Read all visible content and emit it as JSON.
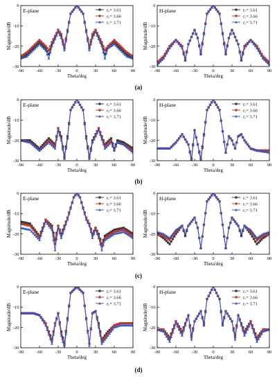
{
  "colors": {
    "s1": "#3a3a3a",
    "s2": "#c0392b",
    "s3": "#2f55d4",
    "axis": "#000000"
  },
  "legend_labels": [
    "εᵣ= 3.61",
    "εᵣ= 3.66",
    "εᵣ= 3.71"
  ],
  "xlabel": "Theta/deg",
  "ylabel": "Magnitude/dB",
  "xticks": [
    -90,
    -60,
    -30,
    0,
    30,
    60,
    90
  ],
  "yticks": [
    0,
    -10,
    -20,
    -30
  ],
  "xlim": [
    -90,
    90
  ],
  "ylim": [
    -30,
    0
  ],
  "rows": [
    {
      "label": "(a)"
    },
    {
      "label": "(b)"
    },
    {
      "label": "(c)"
    },
    {
      "label": "(d)"
    }
  ],
  "chart_data": [
    {
      "type": "line",
      "panel": "a-E",
      "title": "E-plane",
      "xlabel": "Theta/deg",
      "ylabel": "Magnitude/dB",
      "xlim": [
        -90,
        90
      ],
      "ylim": [
        -30,
        0
      ],
      "legend": "top-right",
      "x": [
        -90,
        -80,
        -70,
        -60,
        -50,
        -45,
        -40,
        -30,
        -25,
        -20,
        -10,
        0,
        10,
        20,
        25,
        30,
        40,
        45,
        50,
        60,
        70,
        80,
        90
      ],
      "series": [
        {
          "name": "εᵣ= 3.61",
          "values": [
            -26,
            -24,
            -21,
            -18,
            -21,
            -24,
            -19,
            -12,
            -15,
            -21,
            -4,
            0,
            -4,
            -21,
            -15,
            -12,
            -19,
            -24,
            -20,
            -18,
            -21,
            -24,
            -26
          ]
        },
        {
          "name": "εᵣ= 3.66",
          "values": [
            -25,
            -23,
            -20,
            -17,
            -20,
            -22,
            -18,
            -12,
            -14,
            -20,
            -4,
            0,
            -4,
            -20,
            -14,
            -12,
            -18,
            -22,
            -20,
            -17,
            -20,
            -23,
            -25
          ]
        },
        {
          "name": "εᵣ= 3.71",
          "values": [
            -26,
            -25,
            -22,
            -19,
            -22,
            -26,
            -20,
            -13,
            -16,
            -22,
            -4,
            0,
            -4,
            -22,
            -16,
            -13,
            -20,
            -26,
            -21,
            -19,
            -22,
            -25,
            -26
          ]
        }
      ]
    },
    {
      "type": "line",
      "panel": "a-H",
      "title": "H-plane",
      "xlabel": "Theta/deg",
      "ylabel": "Magnitude/dB",
      "xlim": [
        -90,
        90
      ],
      "ylim": [
        -30,
        0
      ],
      "legend": "top-right",
      "x": [
        -90,
        -80,
        -70,
        -60,
        -50,
        -45,
        -40,
        -30,
        -25,
        -20,
        -10,
        0,
        10,
        20,
        25,
        30,
        40,
        45,
        50,
        60,
        70,
        80,
        90
      ],
      "series": [
        {
          "name": "εᵣ= 3.61",
          "values": [
            -29,
            -26,
            -20,
            -17,
            -20,
            -27,
            -19,
            -12,
            -16,
            -24,
            -4,
            0,
            -4,
            -24,
            -16,
            -12,
            -19,
            -27,
            -20,
            -17,
            -20,
            -26,
            -29
          ]
        },
        {
          "name": "εᵣ= 3.66",
          "values": [
            -28,
            -25,
            -20,
            -17,
            -20,
            -26,
            -19,
            -12,
            -16,
            -23,
            -4,
            0,
            -4,
            -23,
            -16,
            -12,
            -19,
            -26,
            -20,
            -17,
            -20,
            -25,
            -28
          ]
        },
        {
          "name": "εᵣ= 3.71",
          "values": [
            -29,
            -26,
            -21,
            -17,
            -21,
            -27,
            -19,
            -12,
            -16,
            -24,
            -4,
            0,
            -4,
            -24,
            -16,
            -12,
            -19,
            -27,
            -21,
            -17,
            -21,
            -26,
            -29
          ]
        }
      ]
    },
    {
      "type": "line",
      "panel": "b-E",
      "title": "E-plane",
      "xlabel": "Theta/deg",
      "ylabel": "Magnitude/dB",
      "xlim": [
        -90,
        90
      ],
      "ylim": [
        -30,
        0
      ],
      "legend": "top-right",
      "x": [
        -90,
        -75,
        -60,
        -45,
        -35,
        -30,
        -25,
        -20,
        -15,
        -10,
        0,
        10,
        15,
        20,
        25,
        35,
        45,
        55,
        60,
        65,
        75,
        90
      ],
      "series": [
        {
          "name": "εᵣ= 3.61",
          "values": [
            -20,
            -20,
            -24,
            -19,
            -22,
            -14,
            -18,
            -28,
            -18,
            -5,
            0,
            -5,
            -18,
            -28,
            -20,
            -14,
            -22,
            -19,
            -24,
            -20,
            -21,
            -24
          ]
        },
        {
          "name": "εᵣ= 3.66",
          "values": [
            -20,
            -21,
            -25,
            -20,
            -23,
            -14,
            -19,
            -29,
            -19,
            -5,
            0,
            -5,
            -19,
            -29,
            -21,
            -14,
            -23,
            -20,
            -25,
            -21,
            -22,
            -25
          ]
        },
        {
          "name": "εᵣ= 3.71",
          "values": [
            -20,
            -21,
            -25,
            -21,
            -24,
            -15,
            -20,
            -29,
            -19,
            -5,
            0,
            -5,
            -19,
            -29,
            -21,
            -15,
            -24,
            -21,
            -25,
            -21,
            -22,
            -26
          ]
        }
      ]
    },
    {
      "type": "line",
      "panel": "b-H",
      "title": "H-plane",
      "xlabel": "Theta/deg",
      "ylabel": "Magnitude/dB",
      "xlim": [
        -90,
        90
      ],
      "ylim": [
        -30,
        0
      ],
      "legend": "top-right",
      "x": [
        -90,
        -70,
        -60,
        -50,
        -40,
        -35,
        -30,
        -25,
        -20,
        -10,
        0,
        10,
        20,
        25,
        30,
        35,
        40,
        45,
        50,
        60,
        70,
        90
      ],
      "series": [
        {
          "name": "εᵣ= 3.61",
          "values": [
            -24,
            -24,
            -21,
            -17,
            -22,
            -29,
            -15,
            -22,
            -29,
            -5,
            0,
            -5,
            -26,
            -18,
            -20,
            -24,
            -18,
            -17,
            -20,
            -24,
            -25,
            -25
          ]
        },
        {
          "name": "εᵣ= 3.66",
          "values": [
            -24,
            -24,
            -21,
            -17,
            -22,
            -30,
            -15,
            -22,
            -30,
            -5,
            0,
            -5,
            -26,
            -18,
            -20,
            -24,
            -18,
            -17,
            -20,
            -24,
            -25,
            -25
          ]
        },
        {
          "name": "εᵣ= 3.71",
          "values": [
            -24,
            -24,
            -21,
            -17,
            -22,
            -30,
            -15,
            -22,
            -30,
            -5,
            0,
            -5,
            -26,
            -18,
            -20,
            -24,
            -18,
            -17,
            -20,
            -24,
            -25,
            -26
          ]
        }
      ]
    },
    {
      "type": "line",
      "panel": "c-E",
      "title": "E-plane",
      "xlabel": "Theta/deg",
      "ylabel": "Magnitude/dB",
      "xlim": [
        -90,
        90
      ],
      "ylim": [
        -30,
        0
      ],
      "legend": "top-right",
      "x": [
        -90,
        -75,
        -60,
        -50,
        -40,
        -35,
        -30,
        -25,
        -15,
        -5,
        0,
        5,
        15,
        20,
        25,
        30,
        35,
        40,
        45,
        60,
        75,
        90
      ],
      "series": [
        {
          "name": "εᵣ= 3.61",
          "values": [
            -14,
            -15,
            -21,
            -13,
            -16,
            -23,
            -16,
            -20,
            -12,
            -2,
            0,
            -2,
            -12,
            -15,
            -20,
            -17,
            -20,
            -25,
            -21,
            -18,
            -17,
            -20
          ]
        },
        {
          "name": "εᵣ= 3.66",
          "values": [
            -15,
            -16,
            -22,
            -13,
            -17,
            -25,
            -16,
            -21,
            -12,
            -2,
            0,
            -2,
            -12,
            -15,
            -21,
            -17,
            -21,
            -26,
            -22,
            -19,
            -18,
            -21
          ]
        },
        {
          "name": "εᵣ= 3.71",
          "values": [
            -17,
            -18,
            -23,
            -14,
            -18,
            -28,
            -17,
            -22,
            -13,
            -2,
            0,
            -2,
            -13,
            -16,
            -22,
            -18,
            -22,
            -28,
            -23,
            -20,
            -19,
            -22
          ]
        }
      ]
    },
    {
      "type": "line",
      "panel": "c-H",
      "title": "H-plane",
      "xlabel": "Theta/deg",
      "ylabel": "Magnitude/dB",
      "xlim": [
        -90,
        90
      ],
      "ylim": [
        -30,
        0
      ],
      "legend": "top-right",
      "x": [
        -90,
        -80,
        -70,
        -60,
        -50,
        -45,
        -40,
        -30,
        -25,
        -20,
        -10,
        0,
        10,
        20,
        25,
        30,
        40,
        45,
        50,
        60,
        70,
        80,
        90
      ],
      "series": [
        {
          "name": "εᵣ= 3.61",
          "values": [
            -20,
            -22,
            -25,
            -20,
            -16,
            -21,
            -16,
            -12,
            -17,
            -27,
            -4,
            0,
            -4,
            -27,
            -17,
            -12,
            -16,
            -21,
            -16,
            -20,
            -25,
            -22,
            -20
          ]
        },
        {
          "name": "εᵣ= 3.66",
          "values": [
            -20,
            -21,
            -23,
            -19,
            -16,
            -20,
            -16,
            -12,
            -17,
            -27,
            -4,
            0,
            -4,
            -27,
            -17,
            -12,
            -16,
            -20,
            -16,
            -19,
            -23,
            -21,
            -20
          ]
        },
        {
          "name": "εᵣ= 3.71",
          "values": [
            -19,
            -20,
            -22,
            -18,
            -16,
            -20,
            -16,
            -12,
            -17,
            -27,
            -4,
            0,
            -4,
            -27,
            -17,
            -12,
            -16,
            -20,
            -16,
            -18,
            -22,
            -20,
            -19
          ]
        }
      ]
    },
    {
      "type": "line",
      "panel": "d-E",
      "title": "E-plane",
      "xlabel": "Theta/deg",
      "ylabel": "Magnitude/dB",
      "xlim": [
        -90,
        90
      ],
      "ylim": [
        -30,
        0
      ],
      "legend": "top-right",
      "x": [
        -90,
        -70,
        -60,
        -50,
        -40,
        -35,
        -30,
        -25,
        -20,
        -10,
        0,
        10,
        20,
        25,
        30,
        35,
        40,
        50,
        60,
        70,
        90
      ],
      "series": [
        {
          "name": "εᵣ= 3.61",
          "values": [
            -13,
            -13,
            -14,
            -18,
            -26,
            -18,
            -13,
            -22,
            -28,
            -3,
            0,
            -3,
            -28,
            -13,
            -12,
            -18,
            -26,
            -22,
            -19,
            -18,
            -18
          ]
        },
        {
          "name": "εᵣ= 3.66",
          "values": [
            -13,
            -13,
            -14,
            -18,
            -27,
            -18,
            -13,
            -23,
            -29,
            -3,
            0,
            -3,
            -28,
            -13,
            -12,
            -19,
            -27,
            -23,
            -19,
            -18,
            -18
          ]
        },
        {
          "name": "εᵣ= 3.71",
          "values": [
            -13,
            -13,
            -14,
            -19,
            -28,
            -19,
            -13,
            -24,
            -30,
            -3,
            0,
            -3,
            -29,
            -13,
            -12,
            -20,
            -28,
            -24,
            -20,
            -19,
            -19
          ]
        }
      ]
    },
    {
      "type": "line",
      "panel": "d-H",
      "title": "H-plane",
      "xlabel": "Theta/deg",
      "ylabel": "Magnitude/dB",
      "xlim": [
        -90,
        90
      ],
      "ylim": [
        -30,
        0
      ],
      "legend": "top-right",
      "x": [
        -90,
        -80,
        -70,
        -60,
        -50,
        -40,
        -35,
        -30,
        -20,
        -15,
        -10,
        0,
        10,
        15,
        20,
        30,
        35,
        40,
        50,
        60,
        70,
        80,
        90
      ],
      "series": [
        {
          "name": "εᵣ= 3.61",
          "values": [
            -21,
            -21,
            -25,
            -17,
            -22,
            -14,
            -24,
            -17,
            -12,
            -18,
            -6,
            0,
            -6,
            -18,
            -12,
            -17,
            -24,
            -14,
            -22,
            -17,
            -25,
            -21,
            -21
          ]
        },
        {
          "name": "εᵣ= 3.66",
          "values": [
            -21,
            -21,
            -26,
            -17,
            -23,
            -14,
            -25,
            -17,
            -12,
            -19,
            -6,
            0,
            -6,
            -19,
            -12,
            -17,
            -25,
            -14,
            -23,
            -17,
            -26,
            -21,
            -21
          ]
        },
        {
          "name": "εᵣ= 3.71",
          "values": [
            -21,
            -22,
            -27,
            -18,
            -24,
            -14,
            -26,
            -17,
            -12,
            -19,
            -6,
            0,
            -6,
            -19,
            -12,
            -17,
            -26,
            -14,
            -24,
            -18,
            -27,
            -22,
            -21
          ]
        }
      ]
    }
  ]
}
